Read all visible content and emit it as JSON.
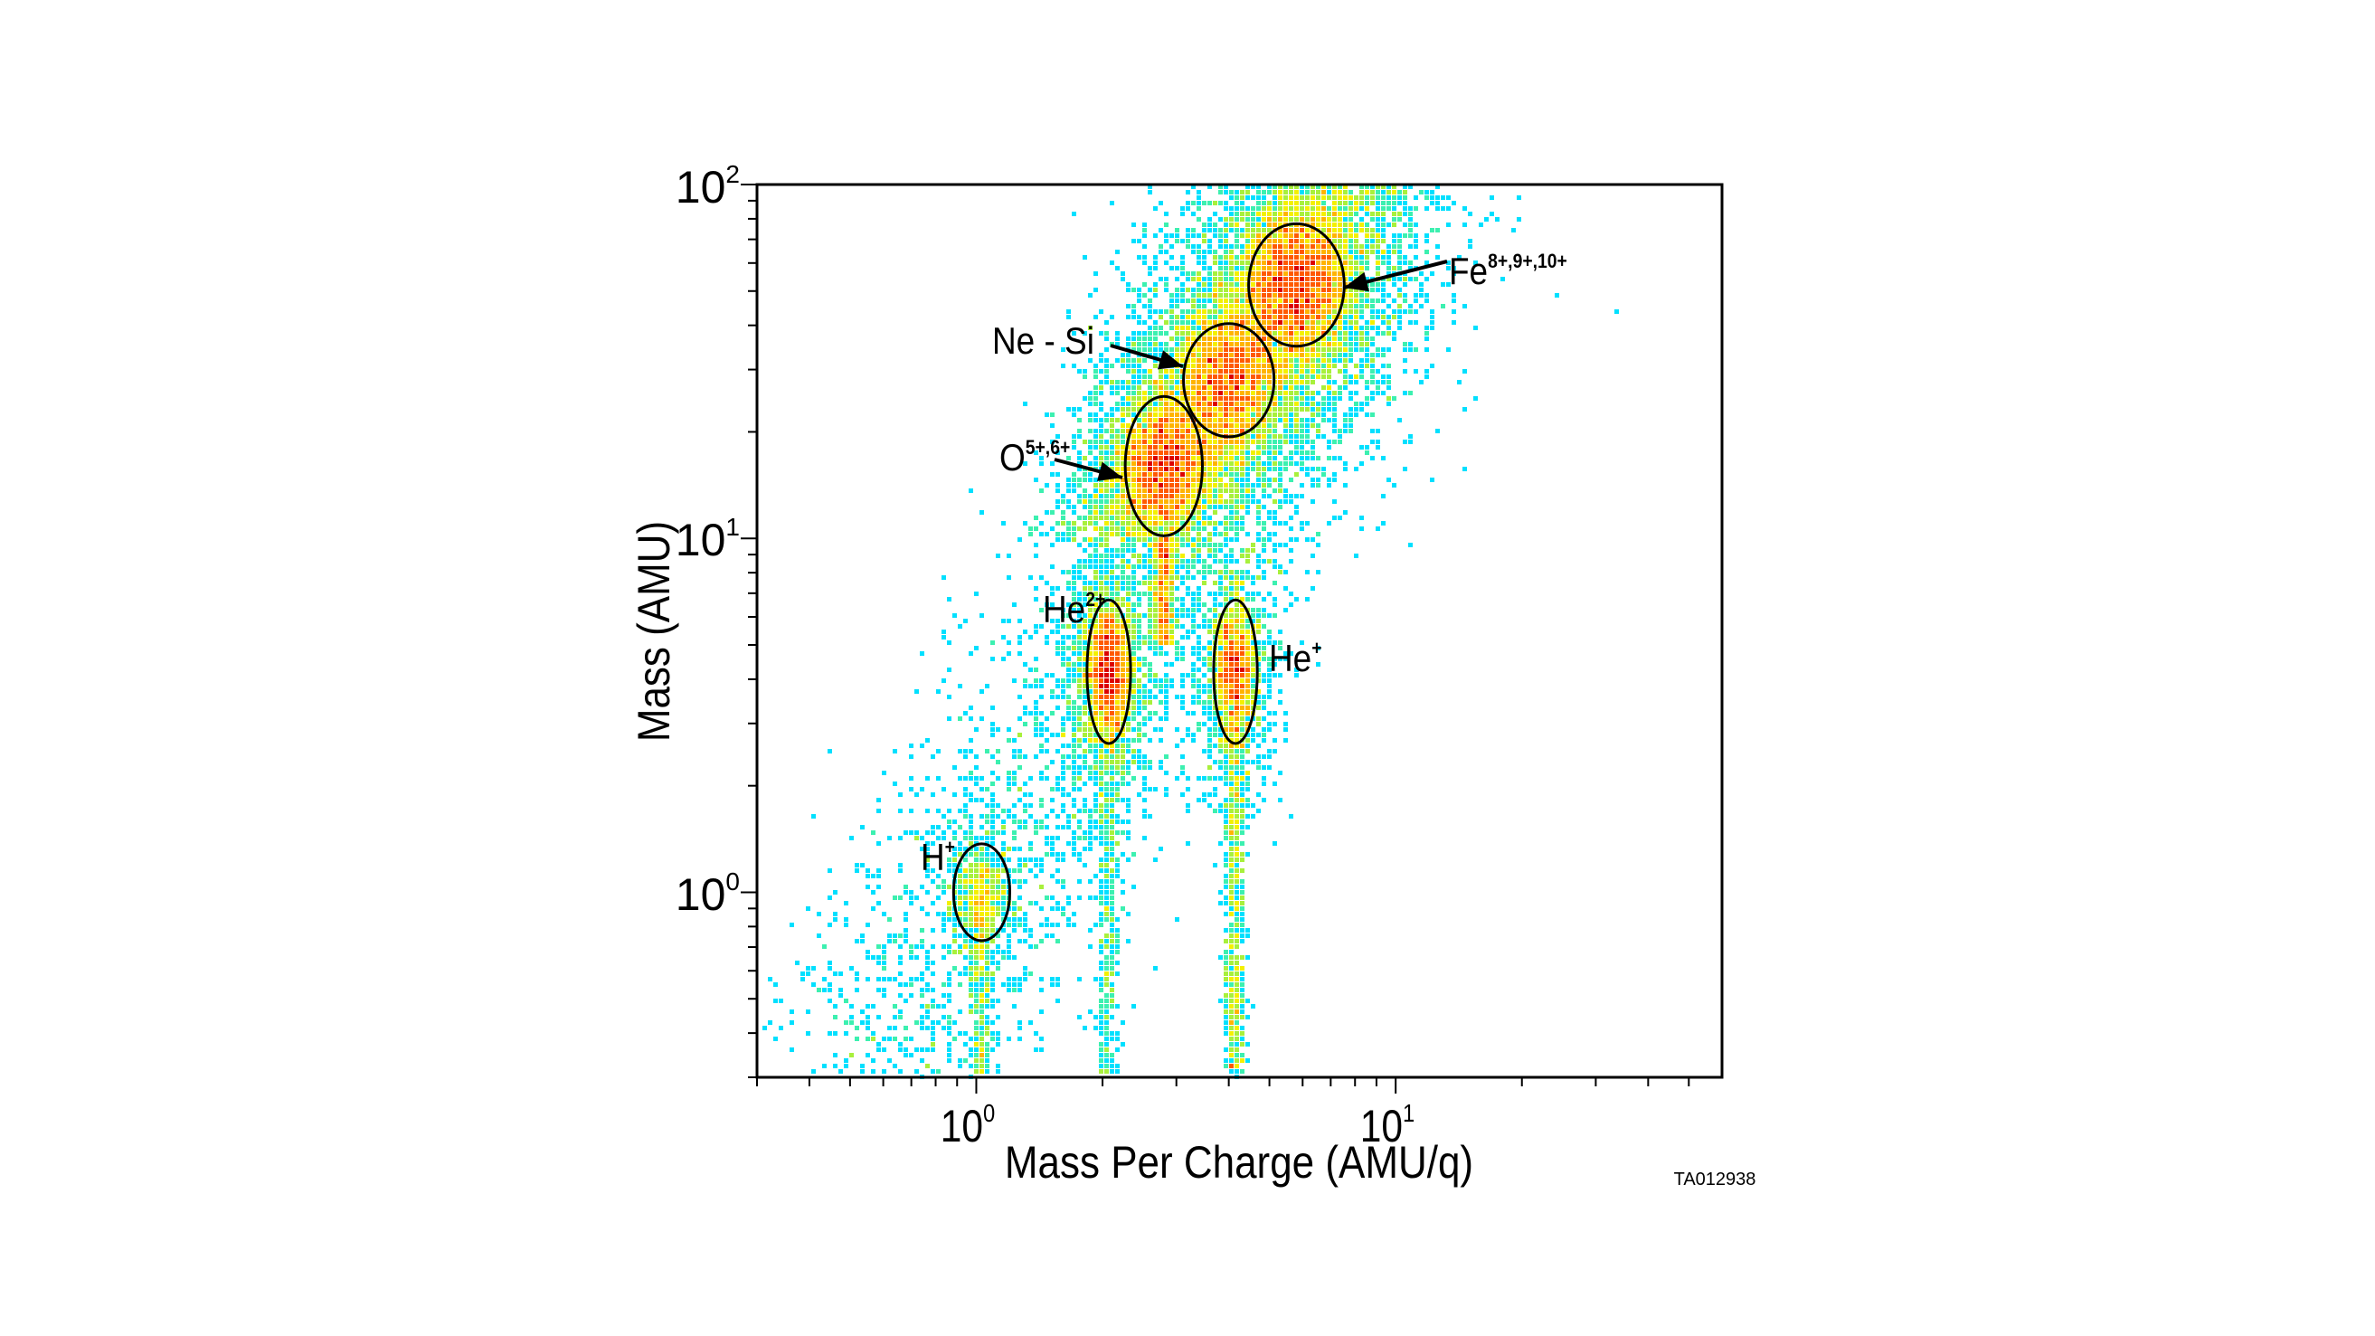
{
  "chart_data": {
    "type": "heatmap",
    "title": "",
    "xlabel": "Mass Per Charge (AMU/q)",
    "ylabel": "Mass (AMU)",
    "x_scale": "log",
    "y_scale": "log",
    "xlim": [
      0.3,
      60
    ],
    "ylim": [
      0.3,
      100
    ],
    "x_ticks": [
      {
        "base": "10",
        "exp": "0",
        "value": 1
      },
      {
        "base": "10",
        "exp": "1",
        "value": 10
      }
    ],
    "y_ticks": [
      {
        "base": "10",
        "exp": "0",
        "value": 1
      },
      {
        "base": "10",
        "exp": "1",
        "value": 10
      },
      {
        "base": "10",
        "exp": "2",
        "value": 100
      }
    ],
    "grid": false,
    "colormap": [
      "#00e0ff",
      "#3cf0b0",
      "#a8f03c",
      "#f4f000",
      "#ffb400",
      "#ff5a00",
      "#dc0000"
    ],
    "species": [
      {
        "name": "H",
        "charge": "+",
        "mpq": 1.03,
        "mass": 1.0
      },
      {
        "name": "He",
        "charge": "2+",
        "mpq": 2.07,
        "mass": 4.2
      },
      {
        "name": "He",
        "charge": "+",
        "mpq": 4.15,
        "mass": 4.2
      },
      {
        "name": "O",
        "charge": "5+,6+",
        "mpq": 2.8,
        "mass": 16
      },
      {
        "name": "Ne - Si",
        "charge": "",
        "mpq": 4.0,
        "mass": 28
      },
      {
        "name": "Fe",
        "charge": "8+,9+,10+",
        "mpq": 5.8,
        "mass": 52
      }
    ]
  },
  "figure_id": "TA012938"
}
